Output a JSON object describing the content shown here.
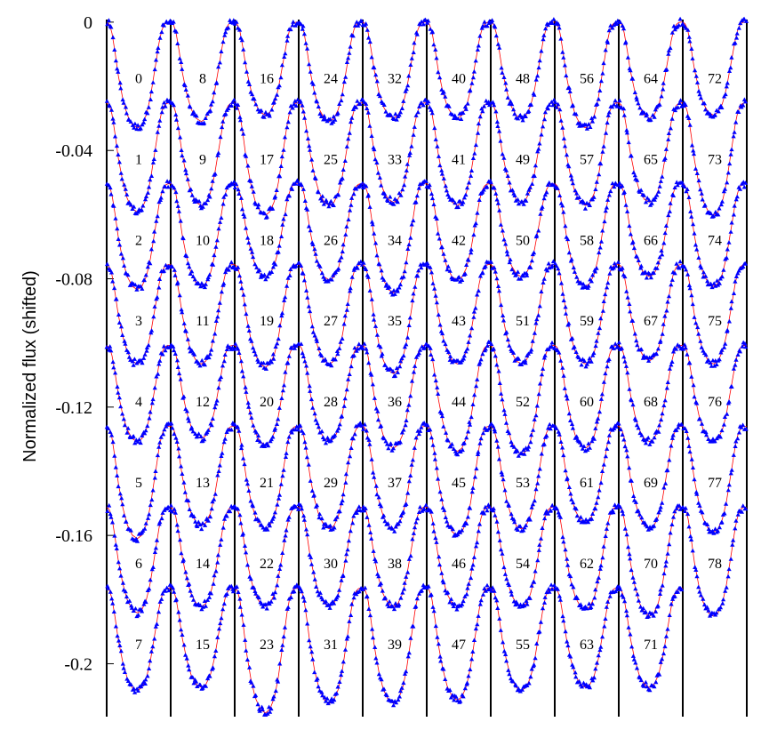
{
  "chart_data": {
    "type": "scatter",
    "title": "",
    "xlabel": "",
    "ylabel": "Normalized flux (shifted)",
    "ylim": [
      -0.2165,
      0.0008
    ],
    "yticks": [
      0,
      -0.04,
      -0.08,
      -0.12,
      -0.16,
      -0.2
    ],
    "ytick_labels": [
      "0",
      "-0.04",
      "-0.08",
      "-0.12",
      "-0.16",
      "-0.2"
    ],
    "columns": 10,
    "rows": 8,
    "row_offset": -0.0252,
    "cycles_per_column": 8,
    "cycle_count": 79,
    "cycle_labels": [
      "0",
      "1",
      "2",
      "3",
      "4",
      "5",
      "6",
      "7",
      "8",
      "9",
      "10",
      "11",
      "12",
      "13",
      "14",
      "15",
      "16",
      "17",
      "18",
      "19",
      "20",
      "21",
      "22",
      "23",
      "24",
      "25",
      "26",
      "27",
      "28",
      "29",
      "30",
      "31",
      "32",
      "33",
      "34",
      "35",
      "36",
      "37",
      "38",
      "39",
      "40",
      "41",
      "42",
      "43",
      "44",
      "45",
      "46",
      "47",
      "48",
      "49",
      "50",
      "51",
      "52",
      "53",
      "54",
      "55",
      "56",
      "57",
      "58",
      "59",
      "60",
      "61",
      "62",
      "63",
      "64",
      "65",
      "66",
      "67",
      "68",
      "69",
      "70",
      "71",
      "72",
      "73",
      "74",
      "75",
      "76",
      "77",
      "78"
    ],
    "light_curve_template": {
      "phase": [
        0.0,
        0.04,
        0.08,
        0.13,
        0.18,
        0.25,
        0.32,
        0.4,
        0.48,
        0.55,
        0.62,
        0.68,
        0.73,
        0.78,
        0.82,
        0.86,
        0.9,
        0.93,
        0.96,
        1.0
      ],
      "flux": [
        0.0,
        -0.0006,
        -0.003,
        -0.009,
        -0.016,
        -0.023,
        -0.028,
        -0.031,
        -0.032,
        -0.031,
        -0.028,
        -0.023,
        -0.017,
        -0.011,
        -0.006,
        -0.0025,
        -0.0008,
        -0.0002,
        0.0,
        0.0
      ]
    },
    "cycle_depths": [
      -0.033,
      -0.034,
      -0.033,
      -0.031,
      -0.03,
      -0.035,
      -0.033,
      -0.032,
      -0.031,
      -0.032,
      -0.032,
      -0.031,
      -0.029,
      -0.031,
      -0.031,
      -0.031,
      -0.029,
      -0.035,
      -0.029,
      -0.032,
      -0.031,
      -0.032,
      -0.031,
      -0.039,
      -0.031,
      -0.032,
      -0.03,
      -0.031,
      -0.03,
      -0.032,
      -0.031,
      -0.036,
      -0.03,
      -0.031,
      -0.034,
      -0.034,
      -0.032,
      -0.032,
      -0.031,
      -0.036,
      -0.03,
      -0.032,
      -0.03,
      -0.031,
      -0.033,
      -0.034,
      -0.031,
      -0.035,
      -0.03,
      -0.031,
      -0.029,
      -0.031,
      -0.034,
      -0.032,
      -0.031,
      -0.032,
      -0.033,
      -0.032,
      -0.032,
      -0.031,
      -0.032,
      -0.03,
      -0.032,
      -0.031,
      -0.03,
      -0.031,
      -0.029,
      -0.03,
      -0.03,
      -0.032,
      -0.034,
      -0.031,
      -0.029,
      -0.035,
      -0.032,
      -0.031,
      -0.03,
      -0.033,
      -0.034
    ],
    "series": [
      {
        "name": "",
        "kind": "points",
        "marker": "triangle",
        "color": "#0000ff"
      },
      {
        "name": "",
        "kind": "line",
        "color": "#ff0000"
      }
    ],
    "grid": false,
    "legend": "none"
  }
}
